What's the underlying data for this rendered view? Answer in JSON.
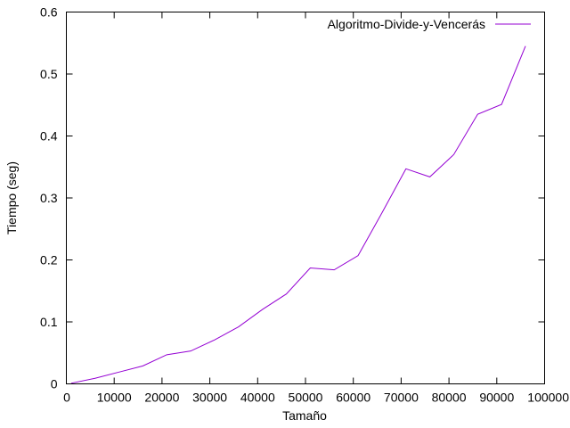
{
  "chart_data": {
    "type": "line",
    "xlabel": "Tamaño",
    "ylabel": "Tiempo (seg)",
    "xlim": [
      0,
      100000
    ],
    "ylim": [
      0,
      0.6
    ],
    "xticks": [
      0,
      10000,
      20000,
      30000,
      40000,
      50000,
      60000,
      70000,
      80000,
      90000,
      100000
    ],
    "yticks": [
      0,
      0.1,
      0.2,
      0.3,
      0.4,
      0.5,
      0.6
    ],
    "xtick_labels": [
      "0",
      "10000",
      "20000",
      "30000",
      "40000",
      "50000",
      "60000",
      "70000",
      "80000",
      "90000",
      "100000"
    ],
    "ytick_labels": [
      "0",
      "0.1",
      "0.2",
      "0.3",
      "0.4",
      "0.5",
      "0.6"
    ],
    "grid": false,
    "legend_position": "top-right",
    "series": [
      {
        "name": "Algoritmo-Divide-y-Vencerás",
        "color": "#9400d3",
        "x": [
          1000,
          6000,
          11000,
          16000,
          21000,
          26000,
          31000,
          36000,
          41000,
          46000,
          51000,
          56000,
          61000,
          66000,
          71000,
          76000,
          81000,
          86000,
          91000,
          96000
        ],
        "y": [
          0.001,
          0.009,
          0.019,
          0.029,
          0.047,
          0.053,
          0.071,
          0.092,
          0.12,
          0.145,
          0.187,
          0.184,
          0.207,
          0.276,
          0.347,
          0.334,
          0.37,
          0.435,
          0.451,
          0.545
        ]
      }
    ]
  }
}
